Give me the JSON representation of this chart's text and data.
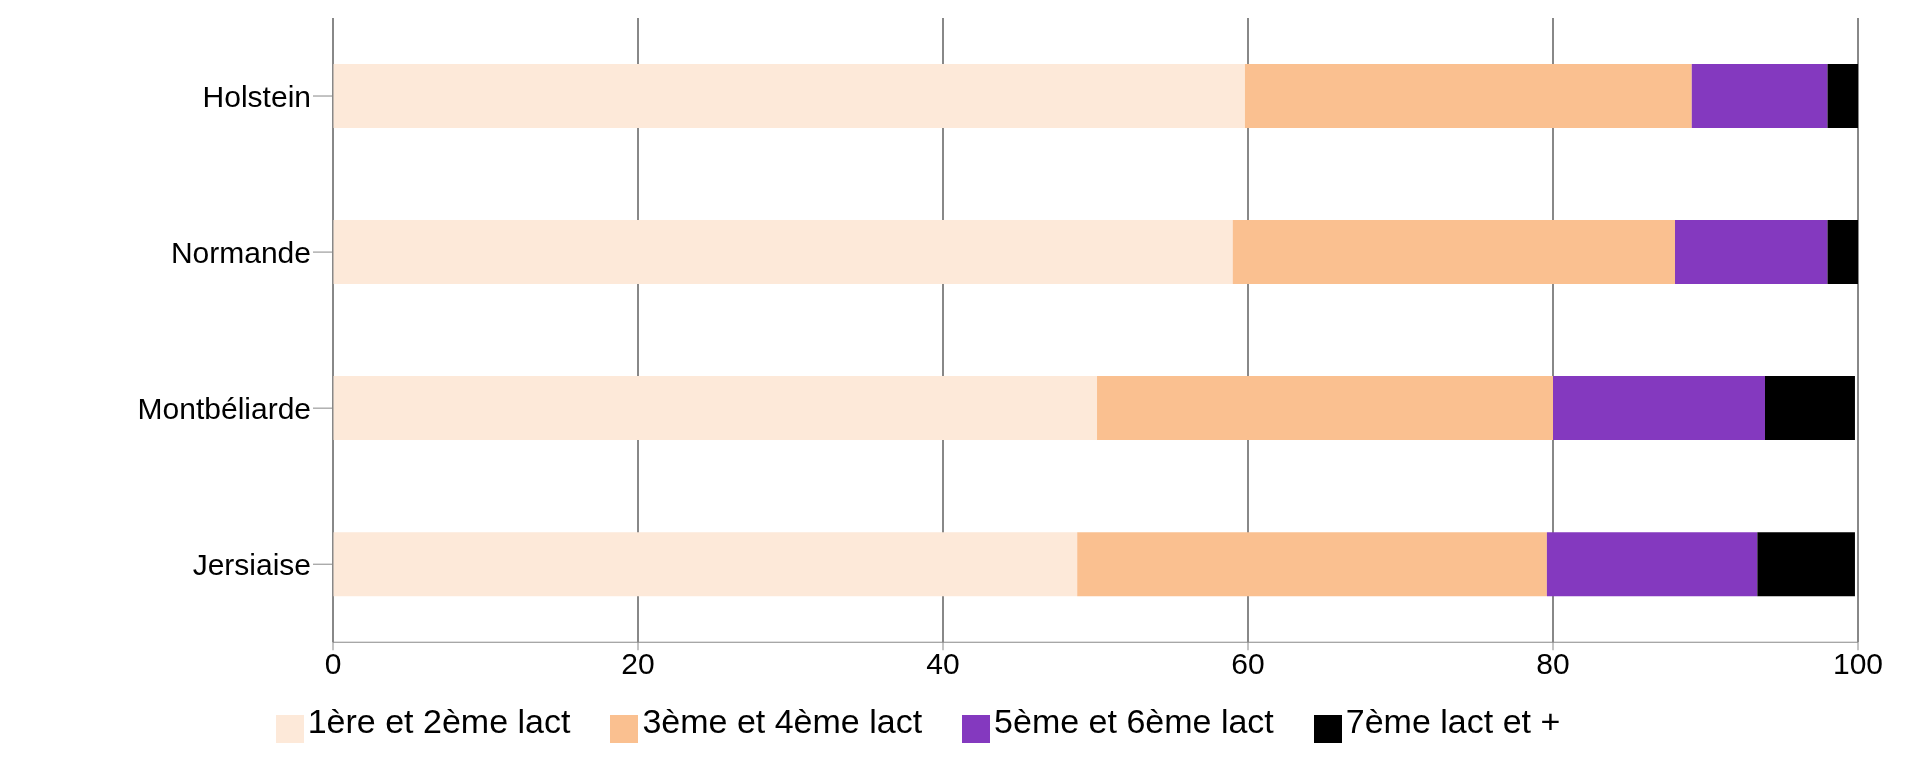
{
  "chart_data": {
    "type": "bar",
    "orientation": "horizontal",
    "stacked": true,
    "categories": [
      "Holstein",
      "Normande",
      "Montbéliarde",
      "Jersiaise"
    ],
    "series": [
      {
        "name": "1ère et 2ème lact",
        "color": "#fde9d9",
        "values": [
          59.8,
          59,
          50.1,
          48.8
        ]
      },
      {
        "name": "3ème et 4ème lact",
        "color": "#fac090",
        "values": [
          29.3,
          29,
          29.9,
          30.8
        ]
      },
      {
        "name": "5ème et 6ème lact",
        "color": "#8439bf",
        "values": [
          8.9,
          10,
          13.9,
          13.8
        ]
      },
      {
        "name": "7ème lact et +",
        "color": "#000000",
        "values": [
          2,
          2,
          5.9,
          6.4
        ]
      }
    ],
    "xlim": [
      0,
      100
    ],
    "xticks": [
      0,
      20,
      40,
      60,
      80,
      100
    ],
    "grid": "x",
    "legend": "bottom"
  }
}
